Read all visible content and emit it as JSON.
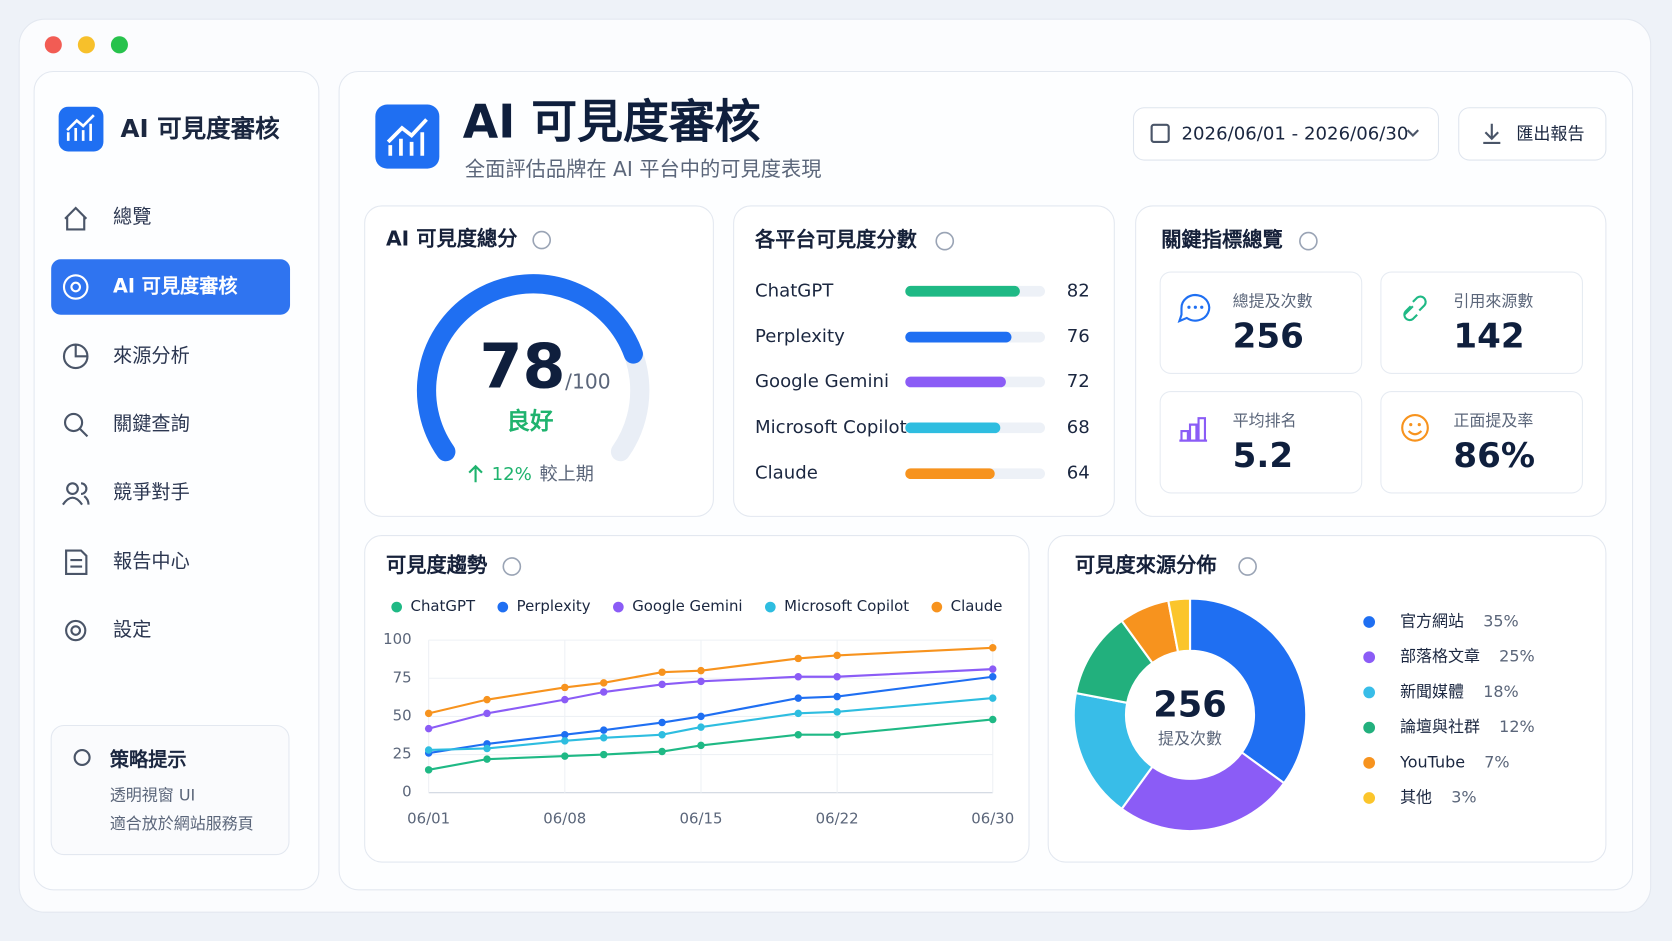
{
  "brand": "AI 可見度審核",
  "nav": {
    "items": [
      "總覽",
      "AI 可見度審核",
      "來源分析",
      "關鍵查詢",
      "競爭對手",
      "報告中心",
      "設定"
    ],
    "active": 1
  },
  "tip": {
    "title": "策略提示",
    "lines": [
      "透明視窗 UI",
      "適合放於網站服務頁"
    ]
  },
  "header": {
    "title": "AI 可見度審核",
    "subtitle": "全面評估品牌在 AI 平台中的可見度表現",
    "date_range": "2026/06/01 - 2026/06/30",
    "export": "匯出報告"
  },
  "score": {
    "title": "AI 可見度總分",
    "value": 78,
    "max": {
      "value": 100,
      "label": "/100"
    },
    "rating": "良好",
    "change": {
      "value": 12,
      "label": "12%"
    },
    "change_note": "較上期",
    "color": "#1f6ff2"
  },
  "platform_scores": {
    "type": "bar",
    "title": "各平台可見度分數",
    "categories": [
      "ChatGPT",
      "Perplexity",
      "Google Gemini",
      "Microsoft Copilot",
      "Claude"
    ],
    "values": [
      82,
      76,
      72,
      68,
      64
    ],
    "colors": [
      "#1fb985",
      "#1f6ff2",
      "#8b5cf6",
      "#2ebde0",
      "#f7931e"
    ],
    "xlim": [
      0,
      100
    ]
  },
  "kpis": {
    "title": "關鍵指標總覽",
    "items": [
      {
        "label": "總提及次數",
        "value": 256,
        "color": "#1f6ff2"
      },
      {
        "label": "引用來源數",
        "value": 142,
        "color": "#1fb985"
      },
      {
        "label": "平均排名",
        "value": 5.2,
        "color": "#8b5cf6"
      },
      {
        "label": "正面提及率",
        "value": {
          "value": 86,
          "label": "86%"
        },
        "color": "#f7931e"
      }
    ]
  },
  "trend": {
    "type": "line",
    "title": "可見度趨勢",
    "x": [
      1,
      4,
      8,
      10,
      13,
      15,
      20,
      22,
      30
    ],
    "xlim": [
      1,
      30
    ],
    "xticks": [
      {
        "value": 1,
        "label": "06/01"
      },
      {
        "value": 8,
        "label": "06/08"
      },
      {
        "value": 15,
        "label": "06/15"
      },
      {
        "value": 22,
        "label": "06/22"
      },
      {
        "value": 30,
        "label": "06/30"
      }
    ],
    "ylim": [
      0,
      100
    ],
    "yticks": [
      0,
      25,
      50,
      75,
      100
    ],
    "grid": true,
    "series": [
      {
        "name": "ChatGPT",
        "color": "#1fb985",
        "values": [
          15,
          22,
          24,
          25,
          27,
          31,
          38,
          38,
          48
        ]
      },
      {
        "name": "Perplexity",
        "color": "#1f6ff2",
        "values": [
          26,
          32,
          38,
          41,
          46,
          50,
          62,
          63,
          76
        ]
      },
      {
        "name": "Google Gemini",
        "color": "#8b5cf6",
        "values": [
          42,
          52,
          61,
          66,
          71,
          73,
          76,
          76,
          81
        ]
      },
      {
        "name": "Microsoft Copilot",
        "color": "#2ebde0",
        "values": [
          28,
          29,
          34,
          36,
          38,
          43,
          52,
          53,
          62
        ]
      },
      {
        "name": "Claude",
        "color": "#f7931e",
        "values": [
          52,
          61,
          69,
          72,
          79,
          80,
          88,
          90,
          95
        ]
      }
    ]
  },
  "sources": {
    "type": "pie",
    "title": "可見度來源分佈",
    "center_value": 256,
    "center_label": "提及次數",
    "categories": [
      "官方網站",
      "部落格文章",
      "新聞媒體",
      "論壇與社群",
      "YouTube",
      "其他"
    ],
    "values": [
      35,
      25,
      18,
      12,
      7,
      3
    ],
    "value_labels": [
      "35%",
      "25%",
      "18%",
      "12%",
      "7%",
      "3%"
    ],
    "colors": [
      "#1f6ff2",
      "#8b5cf6",
      "#38bde8",
      "#22b07d",
      "#f7931e",
      "#fbc52b"
    ]
  }
}
